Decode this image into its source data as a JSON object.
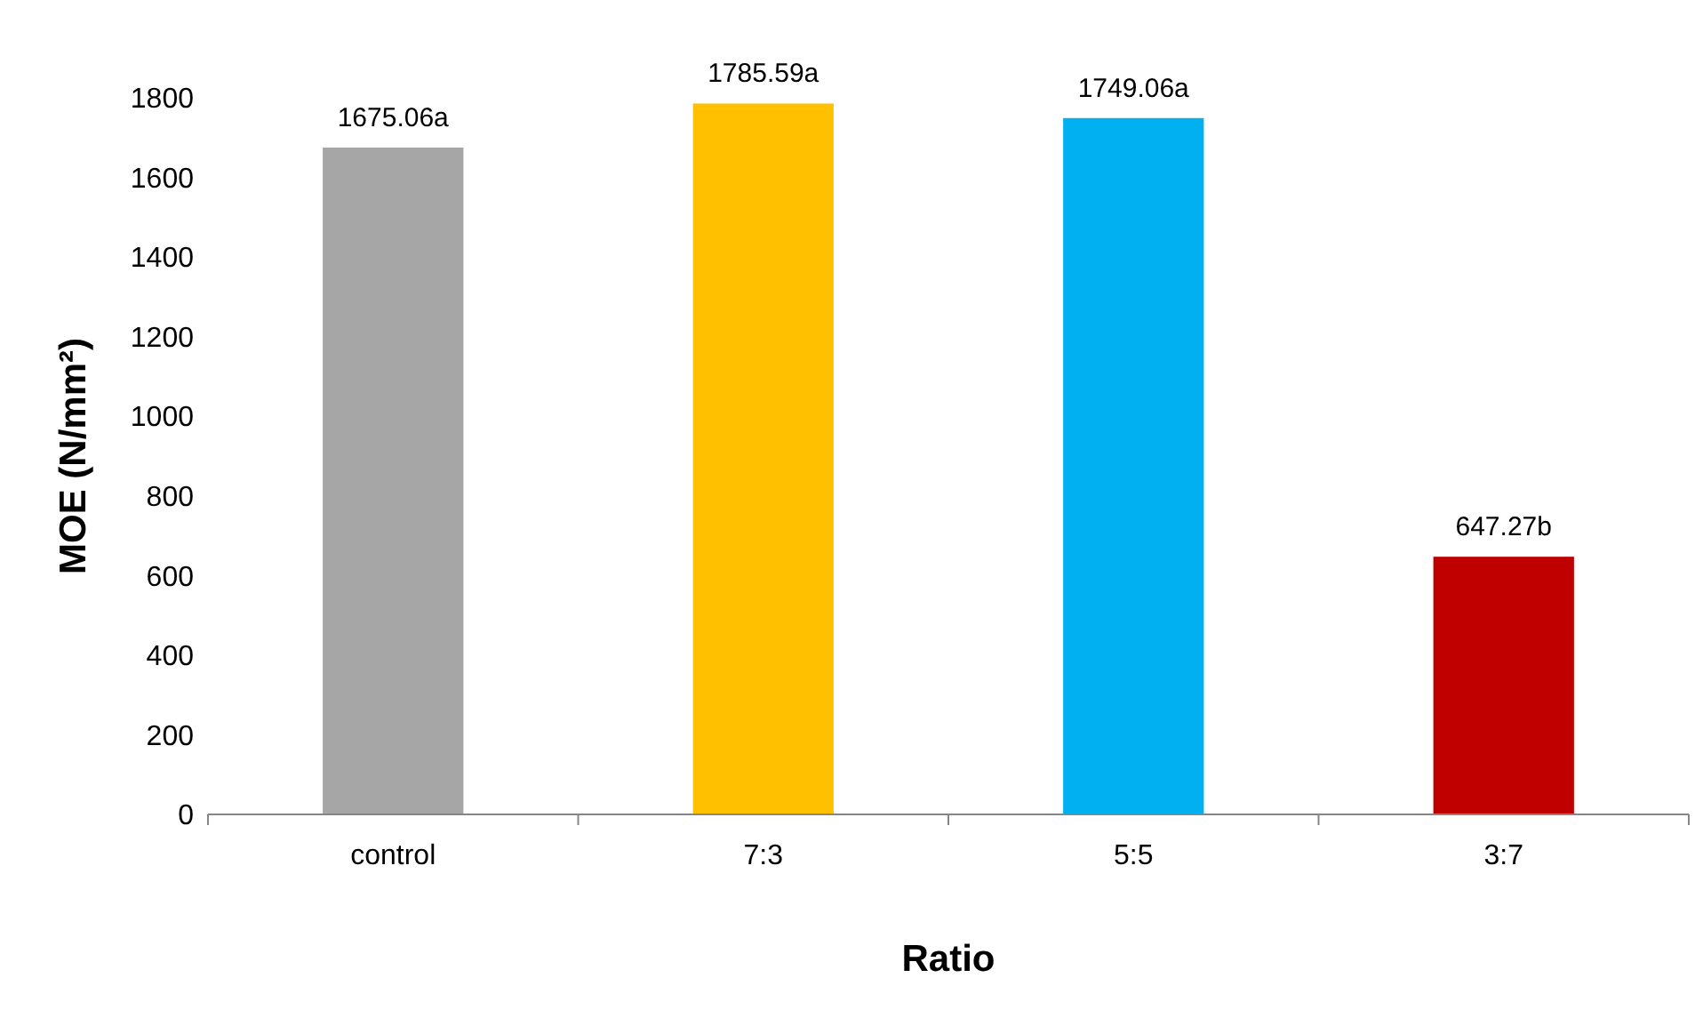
{
  "chart_data": {
    "type": "bar",
    "xlabel": "Ratio",
    "ylabel": "MOE (N/mm²)",
    "categories": [
      "control",
      "7:3",
      "5:5",
      "3:7"
    ],
    "values": [
      1675.06,
      1785.59,
      1749.06,
      647.27
    ],
    "colors": [
      "#a6a6a6",
      "#ffc000",
      "#00b0f0",
      "#c00000"
    ],
    "value_labels": [
      "1675.06a",
      "1785.59a",
      "1749.06a",
      "647.27b"
    ],
    "ylim": [
      0,
      1800
    ],
    "yticks": [
      0,
      200,
      400,
      600,
      800,
      1000,
      1200,
      1400,
      1600,
      1800
    ],
    "grid": false
  }
}
